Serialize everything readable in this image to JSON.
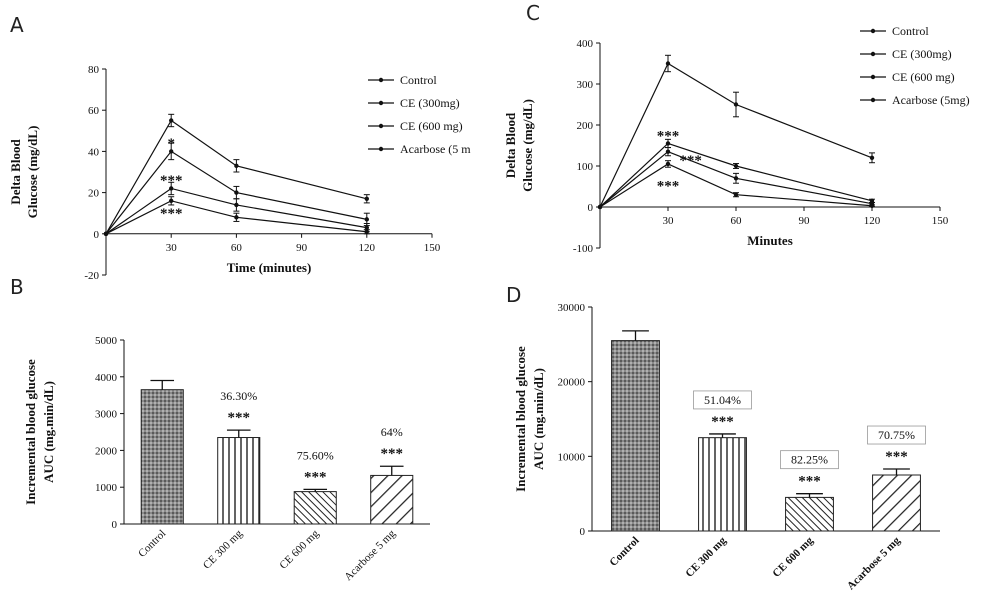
{
  "chart_data": [
    {
      "panel": "A",
      "type": "line",
      "xlabel": "Time (minutes)",
      "ylabel_line1": "Delta Blood",
      "ylabel_line2": "Glucose (mg/dL)",
      "xlim": [
        0,
        150
      ],
      "ylim": [
        -20,
        80
      ],
      "xticks": [
        30,
        60,
        90,
        120,
        150
      ],
      "yticks": [
        -20,
        0,
        20,
        40,
        60,
        80
      ],
      "x": [
        0,
        30,
        60,
        120
      ],
      "series": [
        {
          "name": "Control",
          "values": [
            0,
            55,
            33,
            17
          ],
          "errors": [
            0,
            3,
            3,
            2
          ]
        },
        {
          "name": "CE (300mg)",
          "values": [
            0,
            40,
            20,
            7
          ],
          "errors": [
            0,
            4,
            3,
            3
          ]
        },
        {
          "name": "CE (600 mg)",
          "values": [
            0,
            22,
            14,
            3
          ],
          "errors": [
            0,
            3,
            3,
            2
          ]
        },
        {
          "name": "Acarbose (5 m",
          "values": [
            0,
            16,
            8,
            1
          ],
          "errors": [
            0,
            2,
            2,
            1
          ]
        }
      ],
      "annotations": [
        {
          "text": "*",
          "x": 30,
          "y": 44
        },
        {
          "text": "***",
          "x": 30,
          "y": 26
        },
        {
          "text": "***",
          "x": 30,
          "y": 10
        }
      ],
      "legend_position": "right"
    },
    {
      "panel": "C",
      "type": "line",
      "xlabel": "Minutes",
      "ylabel_line1": "Delta Blood",
      "ylabel_line2": "Glucose (mg/dL)",
      "xlim": [
        0,
        150
      ],
      "ylim": [
        -100,
        400
      ],
      "xticks": [
        30,
        60,
        90,
        120,
        150
      ],
      "yticks": [
        -100,
        0,
        100,
        200,
        300,
        400
      ],
      "x": [
        0,
        30,
        60,
        120
      ],
      "series": [
        {
          "name": "Control",
          "values": [
            0,
            350,
            250,
            120
          ],
          "errors": [
            0,
            20,
            30,
            12
          ]
        },
        {
          "name": "CE (300mg)",
          "values": [
            0,
            155,
            100,
            15
          ],
          "errors": [
            0,
            10,
            6,
            4
          ]
        },
        {
          "name": "CE (600 mg)",
          "values": [
            0,
            135,
            70,
            8
          ],
          "errors": [
            0,
            10,
            12,
            3
          ]
        },
        {
          "name": "Acarbose (5mg)",
          "values": [
            0,
            105,
            30,
            3
          ],
          "errors": [
            0,
            8,
            5,
            2
          ]
        }
      ],
      "annotations": [
        {
          "text": "***",
          "x": 30,
          "y": 175
        },
        {
          "text": "***",
          "x": 40,
          "y": 115
        },
        {
          "text": "***",
          "x": 30,
          "y": 52
        }
      ],
      "legend_position": "right"
    },
    {
      "panel": "B",
      "type": "bar",
      "ylabel_line1": "Incremental blood glucose",
      "ylabel_line2": "AUC  (mg.min/dL)",
      "ylim": [
        0,
        5000
      ],
      "yticks": [
        0,
        1000,
        2000,
        3000,
        4000,
        5000
      ],
      "categories": [
        "Control",
        "CE 300 mg",
        "CE 600 mg",
        "Acarbose 5 mg"
      ],
      "values": [
        3650,
        2350,
        880,
        1320
      ],
      "errors": [
        250,
        200,
        60,
        250
      ],
      "stars": [
        "",
        "***",
        "***",
        "***"
      ],
      "percent_labels": [
        "",
        "36.30%",
        "75.60%",
        "64%"
      ]
    },
    {
      "panel": "D",
      "type": "bar",
      "ylabel_line1": "Incremental blood glucose",
      "ylabel_line2": "AUC (mg.min/dL)",
      "ylim": [
        0,
        30000
      ],
      "yticks": [
        0,
        10000,
        20000,
        30000
      ],
      "categories": [
        "Control",
        "CE 300 mg",
        "CE 600 mg",
        "Acarbose 5 mg"
      ],
      "values": [
        25500,
        12500,
        4500,
        7500
      ],
      "errors": [
        1300,
        500,
        500,
        800
      ],
      "stars": [
        "",
        "***",
        "***",
        "***"
      ],
      "percent_labels": [
        "",
        "51.04%",
        "82.25%",
        "70.75%"
      ]
    }
  ]
}
